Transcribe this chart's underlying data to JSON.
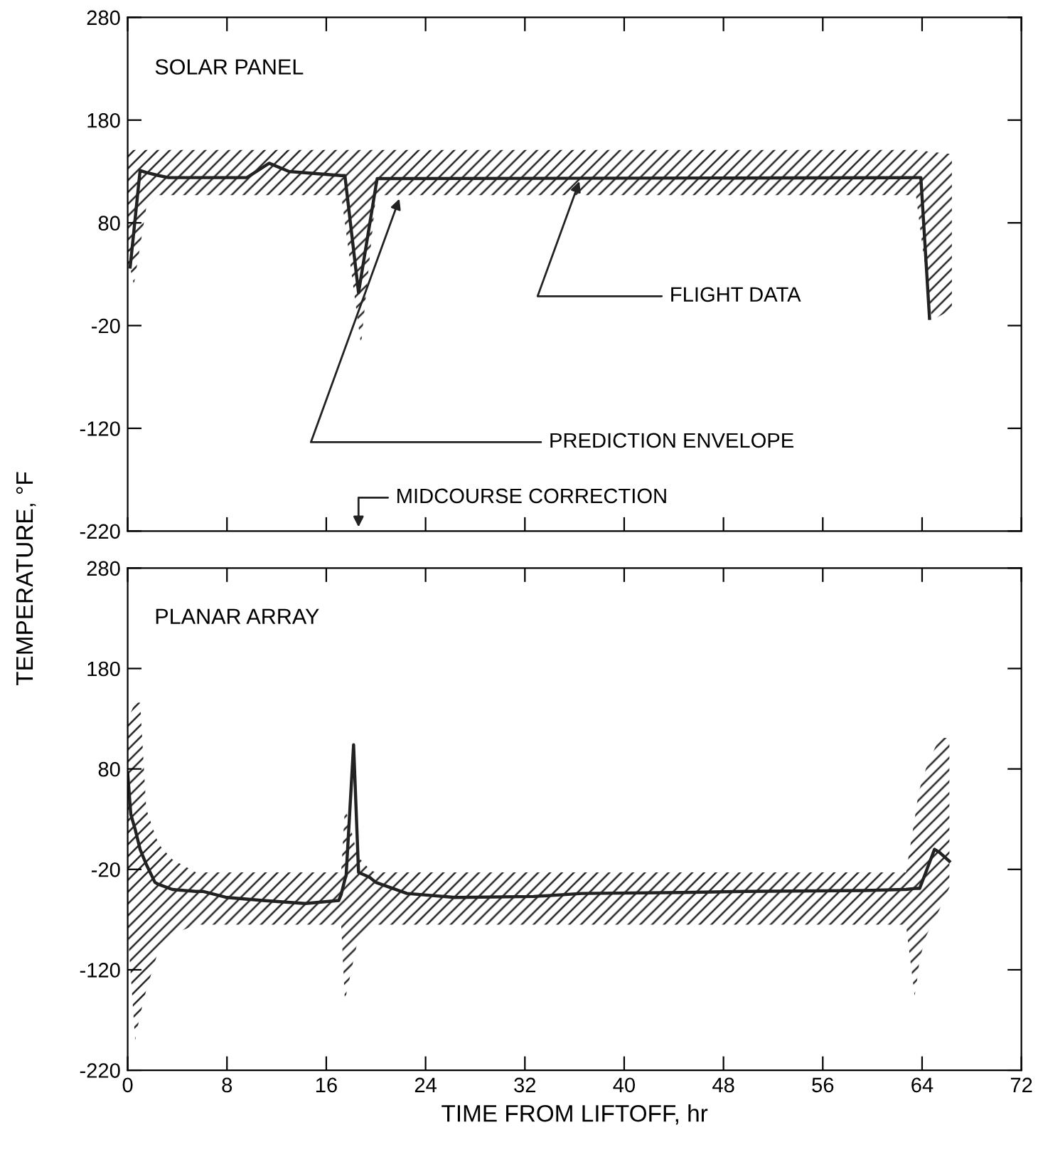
{
  "chart_data": [
    {
      "type": "line",
      "title": "SOLAR PANEL",
      "ylabel": "TEMPERATURE, °F",
      "xlim": [
        0,
        72
      ],
      "ylim": [
        -220,
        280
      ],
      "xticks": [
        0,
        8,
        16,
        24,
        32,
        40,
        48,
        56,
        64,
        72
      ],
      "yticks": [
        -220,
        -120,
        -20,
        80,
        180,
        280
      ],
      "tick_labels": "y",
      "grid": false,
      "legend": false,
      "series": [
        {
          "color": "#222222",
          "x": [
            0,
            0.2,
            0.5,
            1.0,
            1.5,
            2.5,
            3.3,
            9.6,
            11.4,
            13,
            17.2,
            17.5,
            18.6,
            18.8,
            20,
            20.1,
            63.5,
            63.9,
            64.6,
            64.8,
            66.4
          ],
          "values": [
            null,
            37,
            72,
            131,
            129,
            126,
            124,
            124,
            138,
            130,
            126,
            126,
            12,
            27,
            116,
            123,
            124,
            124,
            -13,
            null,
            null
          ],
          "lower": [
            40,
            36,
            20,
            57,
            95,
            107,
            107,
            107,
            107,
            107,
            107,
            80,
            -21,
            -39,
            107,
            107,
            107,
            69,
            4,
            -15,
            -4
          ],
          "upper": [
            151,
            151,
            151,
            151,
            151,
            151,
            151,
            151,
            151,
            151,
            151,
            151,
            151,
            151,
            151,
            151,
            151,
            151,
            149,
            149,
            147
          ]
        }
      ],
      "annotations": [
        {
          "text": "FLIGHT DATA",
          "x": 36.5,
          "y": 124
        },
        {
          "text": "PREDICTION ENVELOPE",
          "x": 22,
          "y": 107
        },
        "MIDCOURSE CORRECTION"
      ]
    },
    {
      "type": "line",
      "title": "PLANAR ARRAY",
      "xlabel": "TIME FROM LIFTOFF, hr",
      "xlim": [
        0,
        72
      ],
      "ylim": [
        -220,
        280
      ],
      "xticks": [
        0,
        8,
        16,
        24,
        32,
        40,
        48,
        56,
        64,
        72
      ],
      "yticks": [
        -220,
        -120,
        -20,
        80,
        180,
        280
      ],
      "grid": false,
      "legend": false,
      "series": [
        {
          "color": "#222222",
          "x": [
            0,
            0.25,
            0.6,
            1,
            1.5,
            2.2,
            2.5,
            3.6,
            5.5,
            6.1,
            8,
            10.9,
            14.3,
            17,
            17.2,
            17.5,
            17.6,
            18.2,
            18.5,
            18.6,
            19.5,
            19.6,
            20,
            22.5,
            26.4,
            32.7,
            36.6,
            44.8,
            49.7,
            59.4,
            62.7,
            63.4,
            63.6,
            63.8,
            64.3,
            65,
            65.4,
            66.2
          ],
          "values": [
            76,
            35,
            20,
            0,
            -15,
            -33,
            -35,
            -40,
            -42,
            -42,
            -48,
            -51,
            -54,
            -51,
            -45,
            -30,
            -26,
            104,
            9,
            -23,
            -28,
            -29,
            -33,
            -44,
            -48,
            -47,
            -44,
            -43,
            -42,
            -41,
            -40,
            -39,
            -39,
            -39,
            -23,
            0,
            -3,
            -12
          ],
          "lower": [
            -80,
            -125,
            -190,
            -165,
            -140,
            -112,
            -100,
            -85,
            -75,
            -75,
            -75,
            -75,
            -75,
            -75,
            -75,
            -151,
            -145,
            -110,
            -93,
            -90,
            -75,
            -75,
            -75,
            -75,
            -75,
            -75,
            -75,
            -75,
            -75,
            -75,
            -75,
            -146,
            -130,
            -110,
            -87,
            -70,
            -60,
            -38
          ],
          "upper": [
            130,
            136,
            146,
            146,
            40,
            15,
            5,
            -10,
            -23,
            -23,
            -23,
            -23,
            -23,
            -23,
            -23,
            41,
            38,
            10,
            -6,
            -8,
            -20,
            -21,
            -23,
            -23,
            -23,
            -23,
            -23,
            -23,
            -23,
            -23,
            -23,
            30,
            47,
            60,
            80,
            100,
            111,
            111
          ]
        }
      ]
    }
  ]
}
